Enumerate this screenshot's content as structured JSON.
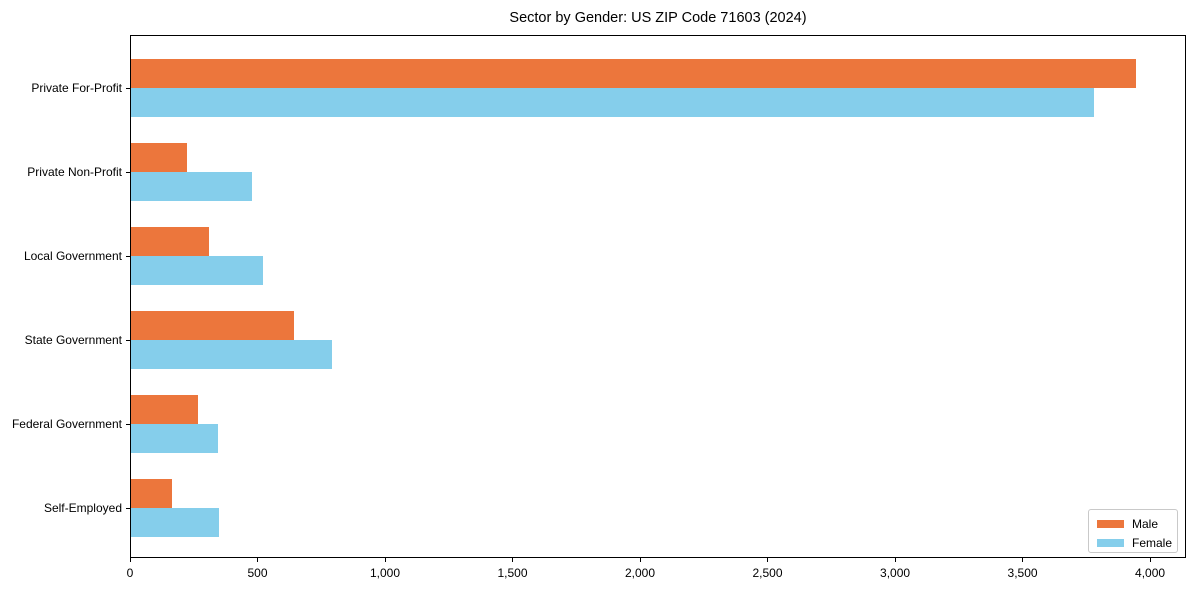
{
  "chart_data": {
    "type": "bar",
    "orientation": "horizontal",
    "title": "Sector by Gender: US ZIP Code 71603 (2024)",
    "categories": [
      "Private For-Profit",
      "Private Non-Profit",
      "Local Government",
      "State Government",
      "Federal Government",
      "Self-Employed"
    ],
    "series": [
      {
        "name": "Male",
        "color": "#ec763c",
        "values": [
          3945,
          224,
          310,
          643,
          267,
          165
        ]
      },
      {
        "name": "Female",
        "color": "#85ceeb",
        "values": [
          3780,
          478,
          522,
          792,
          345,
          349
        ]
      }
    ],
    "xlabel": "",
    "ylabel": "",
    "xlim": [
      0,
      4141
    ],
    "x_ticks": [
      0,
      500,
      1000,
      1500,
      2000,
      2500,
      3000,
      3500,
      4000
    ],
    "x_tick_labels": [
      "0",
      "500",
      "1,000",
      "1,500",
      "2,000",
      "2,500",
      "3,000",
      "3,500",
      "4,000"
    ],
    "grid": false,
    "legend": {
      "position": "lower right"
    }
  }
}
